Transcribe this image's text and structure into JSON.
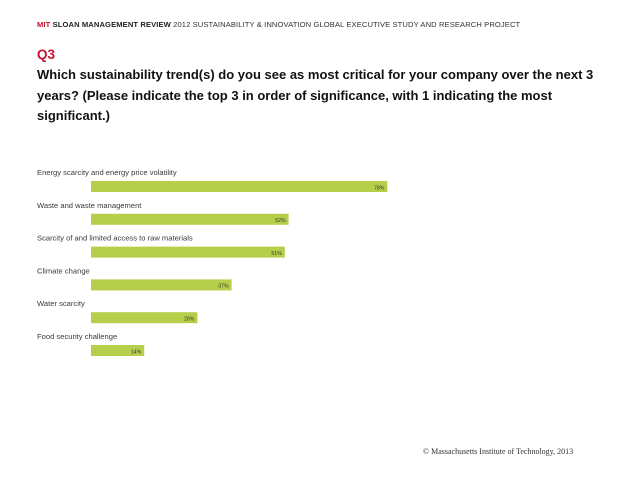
{
  "header": {
    "mit": "MIT",
    "publication": "SLOAN MANAGEMENT REVIEW",
    "project": "2012 SUSTAINABILITY & INNOVATION GLOBAL EXECUTIVE STUDY AND RESEARCH PROJECT"
  },
  "question": {
    "number": "Q3",
    "text": "Which sustainability trend(s) do you see as most critical for your company over the next 3 years? (Please indicate the top 3 in order of significance, with 1 indicating the most significant.)"
  },
  "colors": {
    "bar": "#b5cf4a",
    "label": "#3a3a3a",
    "value": "#333333",
    "accent": "#c8102e"
  },
  "chart_data": {
    "type": "bar",
    "orientation": "horizontal",
    "categories": [
      "Energy scarcity and energy price volatility",
      "Waste and waste management",
      "Scarcity of and limited access to raw materials",
      "Climate change",
      "Water scarcity",
      "Food security challenge"
    ],
    "values": [
      78,
      52,
      51,
      37,
      28,
      14
    ],
    "value_labels": [
      "78%",
      "52%",
      "51%",
      "37%",
      "28%",
      "14%"
    ],
    "unit": "%",
    "xlim": [
      0,
      100
    ],
    "title": "",
    "xlabel": "",
    "ylabel": "",
    "grid": false,
    "legend": "none"
  },
  "footer": {
    "copyright": "© Massachusetts Institute of Technology, 2013"
  }
}
